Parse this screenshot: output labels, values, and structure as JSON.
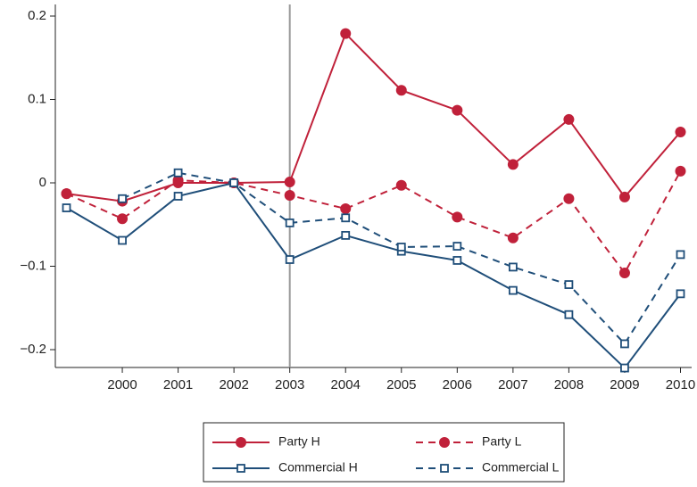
{
  "chart_data": {
    "type": "line",
    "x": [
      1999,
      2000,
      2001,
      2002,
      2003,
      2004,
      2005,
      2006,
      2007,
      2008,
      2009,
      2010
    ],
    "series": [
      {
        "name": "Party H",
        "color": "#c0213a",
        "line_style": "solid",
        "marker": "circle",
        "values": [
          -0.013,
          -0.022,
          0.0,
          0.0,
          0.001,
          0.179,
          0.111,
          0.087,
          0.022,
          0.076,
          -0.017,
          0.061
        ]
      },
      {
        "name": "Party L",
        "color": "#c0213a",
        "line_style": "dashed",
        "marker": "circle",
        "values": [
          -0.013,
          -0.043,
          0.003,
          0.0,
          -0.015,
          -0.031,
          -0.003,
          -0.041,
          -0.066,
          -0.019,
          -0.108,
          0.014
        ]
      },
      {
        "name": "Commercial H",
        "color": "#1f4e79",
        "line_style": "solid",
        "marker": "square",
        "values": [
          -0.03,
          -0.069,
          -0.016,
          0.0,
          -0.092,
          -0.063,
          -0.082,
          -0.093,
          -0.129,
          -0.158,
          -0.222,
          -0.133
        ]
      },
      {
        "name": "Commercial L",
        "color": "#1f4e79",
        "line_style": "dashed",
        "marker": "square",
        "values": [
          null,
          -0.019,
          0.012,
          0.0,
          -0.048,
          -0.042,
          -0.077,
          -0.076,
          -0.101,
          -0.122,
          -0.193,
          -0.086
        ]
      }
    ],
    "xlim": [
      1998.8,
      2010.2
    ],
    "xticks": [
      2000,
      2001,
      2002,
      2003,
      2004,
      2005,
      2006,
      2007,
      2008,
      2009,
      2010
    ],
    "ylim": [
      -0.2214,
      0.2139
    ],
    "yticks": [
      0.2,
      0.1,
      0,
      {
        "value": -0.1,
        "label": "−0.1"
      },
      {
        "value": -0.2,
        "label": "−0.2"
      }
    ],
    "vline": 2003,
    "grid": false,
    "legend": "bottom"
  }
}
